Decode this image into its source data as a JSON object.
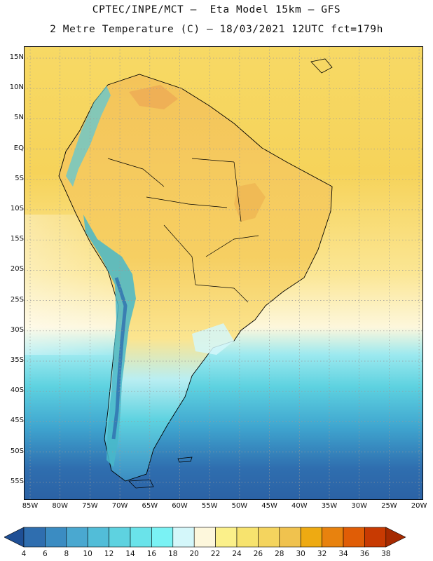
{
  "header": {
    "title_line1": "CPTEC/INPE/MCT –  Eta Model 15km – GFS",
    "title_line2": "2 Metre Temperature (C) – 18/03/2021 12UTC fct=179h"
  },
  "map": {
    "lat_labels": [
      "15N",
      "10N",
      "5N",
      "EQ",
      "5S",
      "10S",
      "15S",
      "20S",
      "25S",
      "30S",
      "35S",
      "40S",
      "45S",
      "50S",
      "55S"
    ],
    "lon_labels": [
      "85W",
      "80W",
      "75W",
      "70W",
      "65W",
      "60W",
      "55W",
      "50W",
      "45W",
      "40W",
      "35W",
      "30W",
      "25W",
      "20W"
    ],
    "colors": {
      "ocean_warm": "#f6d35a",
      "ocean_mid": "#fbe27e",
      "land_warm": "#f2c659",
      "ocean_cool": "#7fdde8",
      "ocean_cold": "#3fa5cf",
      "ocean_coldest": "#2b6fb0",
      "andes": "#48b7c9",
      "boundary": "#000000",
      "grid": "#9a9a9a"
    }
  },
  "colorbar": {
    "labels": [
      "4",
      "6",
      "8",
      "10",
      "12",
      "14",
      "16",
      "18",
      "20",
      "22",
      "24",
      "26",
      "28",
      "30",
      "32",
      "34",
      "36",
      "38"
    ],
    "colors": [
      "#1f4f95",
      "#2f6eaf",
      "#3b8cc2",
      "#4aa8d0",
      "#52bdd8",
      "#5ed2e0",
      "#6ae3ea",
      "#7af2f4",
      "#d4f7fa",
      "#fdf7dc",
      "#fbf08a",
      "#f7e36e",
      "#f4d45e",
      "#f0c24e",
      "#eeaa12",
      "#e8820e",
      "#e05d06",
      "#c83a02",
      "#a62a00"
    ]
  }
}
